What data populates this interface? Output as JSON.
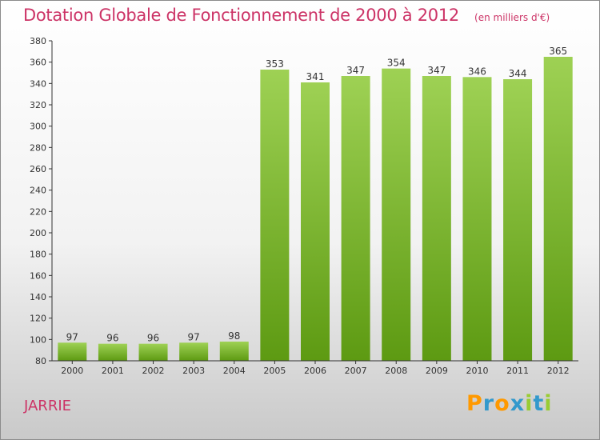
{
  "chart_data": {
    "type": "bar",
    "title": "Dotation Globale de Fonctionnement de 2000 à 2012",
    "subtitle": "(en milliers d'€)",
    "xlabel": "",
    "ylabel": "",
    "categories": [
      "2000",
      "2001",
      "2002",
      "2003",
      "2004",
      "2005",
      "2006",
      "2007",
      "2008",
      "2009",
      "2010",
      "2011",
      "2012"
    ],
    "values": [
      97,
      96,
      96,
      97,
      98,
      353,
      341,
      347,
      354,
      347,
      346,
      344,
      365
    ],
    "ylim": [
      80,
      380
    ],
    "yticks": [
      80,
      100,
      120,
      140,
      160,
      180,
      200,
      220,
      240,
      260,
      280,
      300,
      320,
      340,
      360,
      380
    ],
    "grid": false,
    "legend": "none",
    "bar_color_top": "#9ed154",
    "bar_color_bottom": "#5d9a12"
  },
  "footer": {
    "commune": "JARRIE",
    "logo": [
      "P",
      "r",
      "o",
      "x",
      "i",
      "t",
      "i"
    ],
    "logo_colors": [
      "#ff9900",
      "#3399cc",
      "#ff9900",
      "#3399cc",
      "#99cc33",
      "#3399cc",
      "#99cc33"
    ]
  }
}
